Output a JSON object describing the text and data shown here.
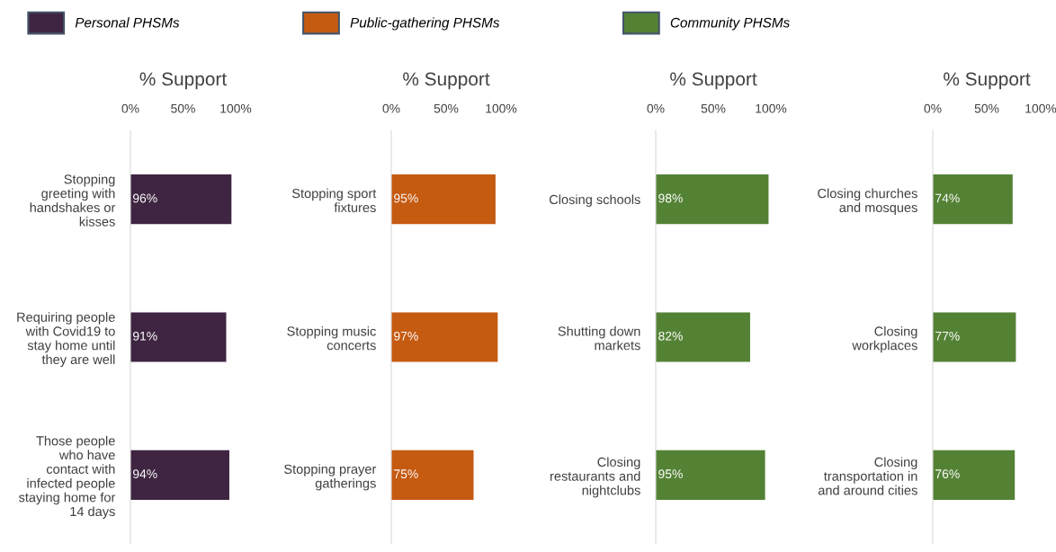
{
  "chart_data": [
    {
      "type": "bar",
      "orientation": "horizontal",
      "title": "% Support",
      "legend": "top",
      "categories": [
        "Stopping\ngreeting with\nhandshakes or\nkisses",
        "Requiring people\nwith Covid19 to\nstay home until\nthey are well",
        "Those people\nwho have\ncontact with\ninfected people\nstaying home for\n14 days"
      ],
      "xlim": [
        0,
        100
      ],
      "xticks": [
        {
          "value": 0,
          "label": "0%"
        },
        {
          "value": 50,
          "label": "50%"
        },
        {
          "value": 100,
          "label": "100%"
        }
      ],
      "series": [
        {
          "name": "Personal PHSMs",
          "color": "#3f2542",
          "values": [
            96,
            91,
            94
          ],
          "value_labels": [
            "96%",
            "91%",
            "94%"
          ]
        }
      ]
    },
    {
      "type": "bar",
      "orientation": "horizontal",
      "title": "% Support",
      "legend": "top",
      "categories": [
        "Stopping sport\nfixtures",
        "Stopping music\nconcerts",
        "Stopping prayer\ngatherings"
      ],
      "xlim": [
        0,
        100
      ],
      "xticks": [
        {
          "value": 0,
          "label": "0%"
        },
        {
          "value": 50,
          "label": "50%"
        },
        {
          "value": 100,
          "label": "100%"
        }
      ],
      "series": [
        {
          "name": "Public-gathering PHSMs",
          "color": "#c55a11",
          "values": [
            95,
            97,
            75
          ],
          "value_labels": [
            "95%",
            "97%",
            "75%"
          ]
        }
      ]
    },
    {
      "type": "bar",
      "orientation": "horizontal",
      "title": "% Support",
      "legend": "top",
      "categories": [
        "Closing schools",
        "Shutting down\nmarkets",
        "Closing\nrestaurants and\nnightclubs"
      ],
      "xlim": [
        0,
        100
      ],
      "xticks": [
        {
          "value": 0,
          "label": "0%"
        },
        {
          "value": 50,
          "label": "50%"
        },
        {
          "value": 100,
          "label": "100%"
        }
      ],
      "series": [
        {
          "name": "Community PHSMs",
          "color": "#548235",
          "values": [
            98,
            82,
            95
          ],
          "value_labels": [
            "98%",
            "82%",
            "95%"
          ]
        }
      ]
    },
    {
      "type": "bar",
      "orientation": "horizontal",
      "title": "% Support",
      "categories": [
        "Closing churches\nand mosques",
        "Closing\nworkplaces",
        "Closing\ntransportation in\nand around cities"
      ],
      "xlim": [
        0,
        100
      ],
      "xticks": [
        {
          "value": 0,
          "label": "0%"
        },
        {
          "value": 50,
          "label": "50%"
        },
        {
          "value": 100,
          "label": "100%"
        }
      ],
      "series": [
        {
          "color": "#548235",
          "values": [
            74,
            77,
            76
          ],
          "value_labels": [
            "74%",
            "77%",
            "76%"
          ]
        }
      ]
    }
  ]
}
